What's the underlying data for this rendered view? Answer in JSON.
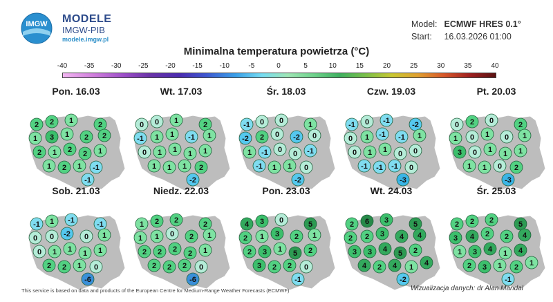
{
  "header": {
    "brand": "MODELE",
    "brand_sub": "IMGW-PIB",
    "brand_url": "modele.imgw.pl",
    "logo_text": "IMGW",
    "model_label": "Model:",
    "model_value": "ECMWF HRES 0.1°",
    "start_label": "Start:",
    "start_value": "16.03.2026 01:00"
  },
  "title": "Minimalna temperatura powietrza (°C)",
  "colorbar": {
    "ticks": [
      "-40",
      "-35",
      "-30",
      "-25",
      "-20",
      "-15",
      "-10",
      "-5",
      "0",
      "5",
      "10",
      "15",
      "20",
      "25",
      "30",
      "35",
      "40"
    ]
  },
  "panels": [
    {
      "date": "Pon. 16.03",
      "values": [
        2,
        2,
        1,
        2,
        1,
        3,
        1,
        2,
        2,
        2,
        1,
        2,
        2,
        1,
        1,
        2,
        1,
        -1,
        -1
      ]
    },
    {
      "date": "Wt. 17.03",
      "values": [
        0,
        0,
        1,
        2,
        -1,
        1,
        1,
        -1,
        1,
        0,
        1,
        1,
        1,
        1,
        1,
        1,
        1,
        2,
        -2
      ]
    },
    {
      "date": "Śr. 18.03",
      "values": [
        -1,
        0,
        0,
        1,
        -2,
        2,
        0,
        -2,
        0,
        1,
        -1,
        0,
        0,
        -1,
        -1,
        1,
        1,
        0,
        -2
      ]
    },
    {
      "date": "Czw. 19.03",
      "values": [
        -1,
        0,
        -1,
        -2,
        0,
        1,
        -1,
        -1,
        1,
        0,
        1,
        1,
        0,
        0,
        -1,
        -1,
        -1,
        0,
        -3
      ]
    },
    {
      "date": "Pt. 20.03",
      "values": [
        0,
        2,
        0,
        2,
        1,
        0,
        1,
        0,
        1,
        3,
        0,
        1,
        1,
        1,
        1,
        1,
        0,
        2,
        -3
      ]
    },
    {
      "date": "Sob. 21.03",
      "values": [
        -1,
        1,
        -1,
        -1,
        0,
        0,
        -2,
        0,
        1,
        0,
        1,
        1,
        1,
        1,
        2,
        2,
        1,
        0,
        -6
      ]
    },
    {
      "date": "Niedz. 22.03",
      "values": [
        1,
        2,
        2,
        2,
        1,
        1,
        0,
        2,
        1,
        2,
        2,
        2,
        2,
        1,
        2,
        2,
        2,
        0,
        -6
      ]
    },
    {
      "date": "Pon. 23.03",
      "values": [
        4,
        3,
        0,
        5,
        2,
        1,
        3,
        2,
        1,
        2,
        3,
        1,
        5,
        2,
        3,
        2,
        2,
        0,
        -1
      ]
    },
    {
      "date": "Wt. 24.03",
      "values": [
        2,
        6,
        3,
        5,
        2,
        2,
        3,
        4,
        4,
        3,
        3,
        4,
        5,
        2,
        4,
        2,
        4,
        1,
        4,
        -2
      ]
    },
    {
      "date": "Śr. 25.03",
      "values": [
        2,
        2,
        2,
        5,
        3,
        4,
        2,
        2,
        4,
        1,
        3,
        4,
        1,
        4,
        2,
        3,
        1,
        2,
        1,
        -1
      ]
    }
  ],
  "colors": {
    "map_fill": "#bdbdbd",
    "map_stroke": "#ffffff"
  },
  "footer": {
    "credit": "This service is based on data and products of the European Centre for Medium-Range Weather Forecasts (ECMWF)",
    "author": "Wizualizacja danych: dr Alan Mandal"
  }
}
